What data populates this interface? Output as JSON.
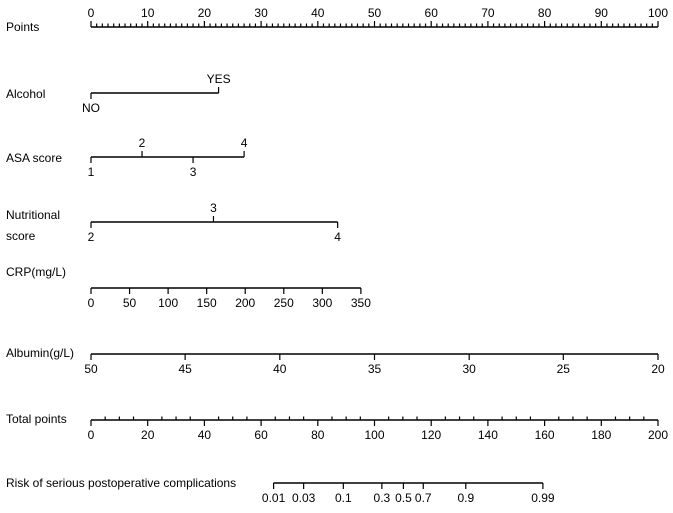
{
  "chart_data": {
    "type": "nomogram",
    "rows": [
      {
        "key": "points",
        "label": [
          "Points"
        ],
        "ticks": [
          {
            "label": "0",
            "side": "above"
          },
          {
            "label": "10",
            "side": "above"
          },
          {
            "label": "20",
            "side": "above"
          },
          {
            "label": "30",
            "side": "above"
          },
          {
            "label": "40",
            "side": "above"
          },
          {
            "label": "50",
            "side": "above"
          },
          {
            "label": "60",
            "side": "above"
          },
          {
            "label": "70",
            "side": "above"
          },
          {
            "label": "80",
            "side": "above"
          },
          {
            "label": "90",
            "side": "above"
          },
          {
            "label": "100",
            "side": "above"
          }
        ],
        "minor_per_major": 10
      },
      {
        "key": "alcohol",
        "label": [
          "Alcohol"
        ],
        "ticks": [
          {
            "label": "NO",
            "points": 0,
            "side": "below"
          },
          {
            "label": "YES",
            "points": 22.5,
            "side": "above"
          }
        ]
      },
      {
        "key": "asa",
        "label": [
          "ASA score"
        ],
        "ticks": [
          {
            "label": "1",
            "points": 0,
            "side": "below"
          },
          {
            "label": "2",
            "points": 9,
            "side": "above"
          },
          {
            "label": "3",
            "points": 18,
            "side": "below"
          },
          {
            "label": "4",
            "points": 27,
            "side": "above"
          }
        ]
      },
      {
        "key": "nutrition",
        "label": [
          "Nutritional",
          "score"
        ],
        "ticks": [
          {
            "label": "2",
            "points": 0,
            "side": "below"
          },
          {
            "label": "3",
            "points": 21.6,
            "side": "above"
          },
          {
            "label": "4",
            "points": 43.5,
            "side": "below"
          }
        ]
      },
      {
        "key": "crp",
        "label": [
          "CRP(mg/L)"
        ],
        "ticks": [
          {
            "label": "0",
            "points": 0,
            "side": "below"
          },
          {
            "label": "50",
            "points": 6.8,
            "side": "below"
          },
          {
            "label": "100",
            "points": 13.6,
            "side": "below"
          },
          {
            "label": "150",
            "points": 20.4,
            "side": "below"
          },
          {
            "label": "200",
            "points": 27.2,
            "side": "below"
          },
          {
            "label": "250",
            "points": 34.0,
            "side": "below"
          },
          {
            "label": "300",
            "points": 40.8,
            "side": "below"
          },
          {
            "label": "350",
            "points": 47.6,
            "side": "below"
          }
        ]
      },
      {
        "key": "albumin",
        "label": [
          "Albumin(g/L)"
        ],
        "ticks": [
          {
            "label": "50",
            "points": 0,
            "side": "below"
          },
          {
            "label": "45",
            "points": 16.6,
            "side": "below"
          },
          {
            "label": "40",
            "points": 33.3,
            "side": "below"
          },
          {
            "label": "35",
            "points": 50,
            "side": "below"
          },
          {
            "label": "30",
            "points": 66.7,
            "side": "below"
          },
          {
            "label": "25",
            "points": 83.3,
            "side": "below"
          },
          {
            "label": "20",
            "points": 100,
            "side": "below"
          }
        ]
      },
      {
        "key": "total",
        "label": [
          "Total points"
        ],
        "ticks": [
          {
            "label": "0",
            "points": 0,
            "side": "below"
          },
          {
            "label": "20",
            "points": 10,
            "side": "below"
          },
          {
            "label": "40",
            "points": 20,
            "side": "below"
          },
          {
            "label": "60",
            "points": 30,
            "side": "below"
          },
          {
            "label": "80",
            "points": 40,
            "side": "below"
          },
          {
            "label": "100",
            "points": 50,
            "side": "below"
          },
          {
            "label": "120",
            "points": 60,
            "side": "below"
          },
          {
            "label": "140",
            "points": 70,
            "side": "below"
          },
          {
            "label": "160",
            "points": 80,
            "side": "below"
          },
          {
            "label": "180",
            "points": 90,
            "side": "below"
          },
          {
            "label": "200",
            "points": 100,
            "side": "below"
          }
        ],
        "minor_per_major": 4
      },
      {
        "key": "risk",
        "label": [
          "Risk of serious postoperative complications"
        ],
        "ticks": [
          {
            "label": "0.01",
            "points": 32.2,
            "side": "below"
          },
          {
            "label": "0.03",
            "points": 37.5,
            "side": "below"
          },
          {
            "label": "0.1",
            "points": 44.5,
            "side": "below"
          },
          {
            "label": "0.3",
            "points": 51.3,
            "side": "below"
          },
          {
            "label": "0.5",
            "points": 55.1,
            "side": "below"
          },
          {
            "label": "0.7",
            "points": 58.6,
            "side": "below"
          },
          {
            "label": "0.9",
            "points": 66.1,
            "side": "below"
          },
          {
            "label": "0.99",
            "points": 79.7,
            "side": "below"
          }
        ]
      }
    ]
  }
}
